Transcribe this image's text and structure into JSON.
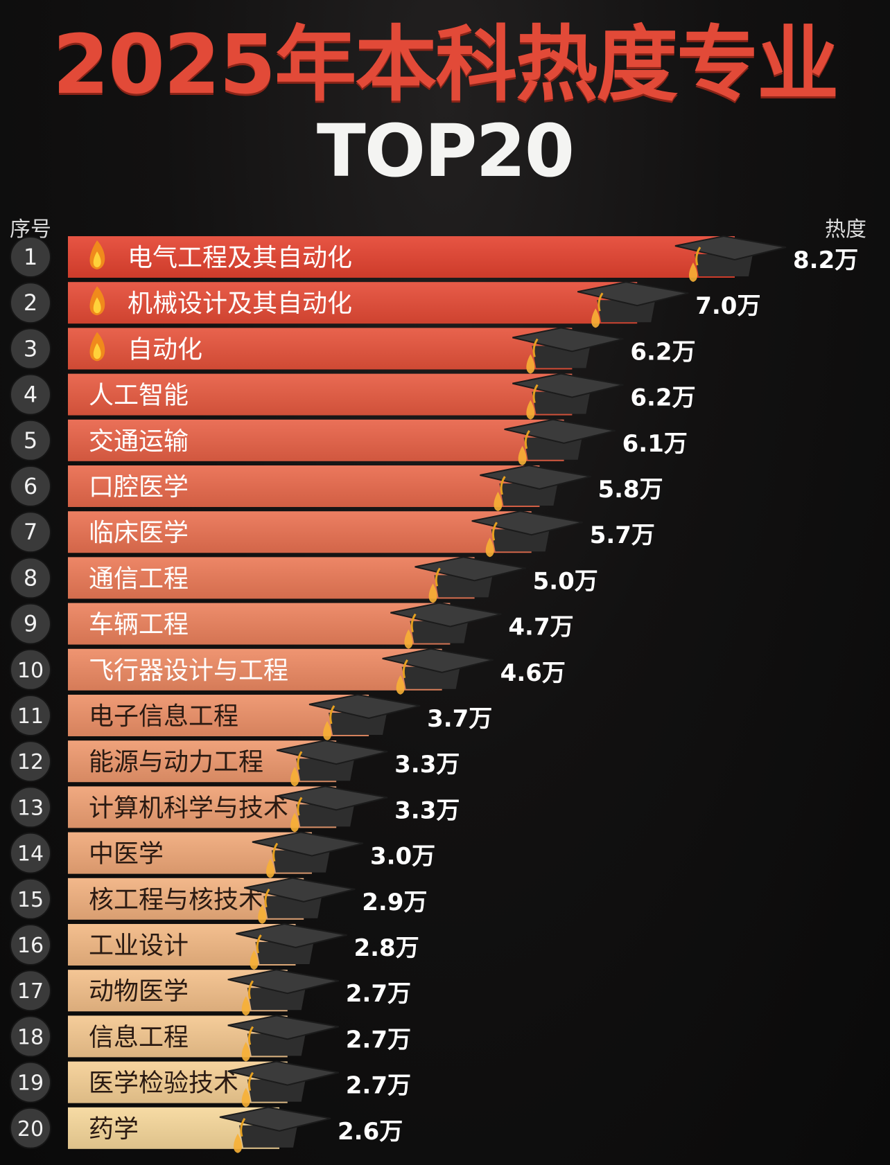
{
  "title": "2025年本科热度专业",
  "subtitle": "TOP20",
  "headers": {
    "rank": "序号",
    "heat": "热度"
  },
  "colors": {
    "title": "#e24a38",
    "bar_top": "#e4422f",
    "bar_bottom": "#f6d79a",
    "background": "#0c0b0b"
  },
  "chart_data": {
    "type": "bar",
    "orientation": "horizontal",
    "unit": "万",
    "categories": [
      "电气工程及其自动化",
      "机械设计及其自动化",
      "自动化",
      "人工智能",
      "交通运输",
      "口腔医学",
      "临床医学",
      "通信工程",
      "车辆工程",
      "飞行器设计与工程",
      "电子信息工程",
      "能源与动力工程",
      "计算机科学与技术",
      "中医学",
      "核工程与核技术",
      "工业设计",
      "动物医学",
      "信息工程",
      "医学检验技术",
      "药学"
    ],
    "ranks": [
      "1",
      "2",
      "3",
      "4",
      "5",
      "6",
      "7",
      "8",
      "9",
      "10",
      "11",
      "12",
      "13",
      "14",
      "15",
      "16",
      "17",
      "18",
      "19",
      "20"
    ],
    "values": [
      8.2,
      7.0,
      6.2,
      6.2,
      6.1,
      5.8,
      5.7,
      5.0,
      4.7,
      4.6,
      3.7,
      3.3,
      3.3,
      3.0,
      2.9,
      2.8,
      2.7,
      2.7,
      2.7,
      2.6
    ],
    "value_labels": [
      "8.2万",
      "7.0万",
      "6.2万",
      "6.2万",
      "6.1万",
      "5.8万",
      "5.7万",
      "5.0万",
      "4.7万",
      "4.6万",
      "3.7万",
      "3.3万",
      "3.3万",
      "3.0万",
      "2.9万",
      "2.8万",
      "2.7万",
      "2.7万",
      "2.7万",
      "2.6万"
    ],
    "flame_icon_rows": [
      1,
      2,
      3
    ],
    "bar_end_icon": "graduation-cap-icon"
  }
}
